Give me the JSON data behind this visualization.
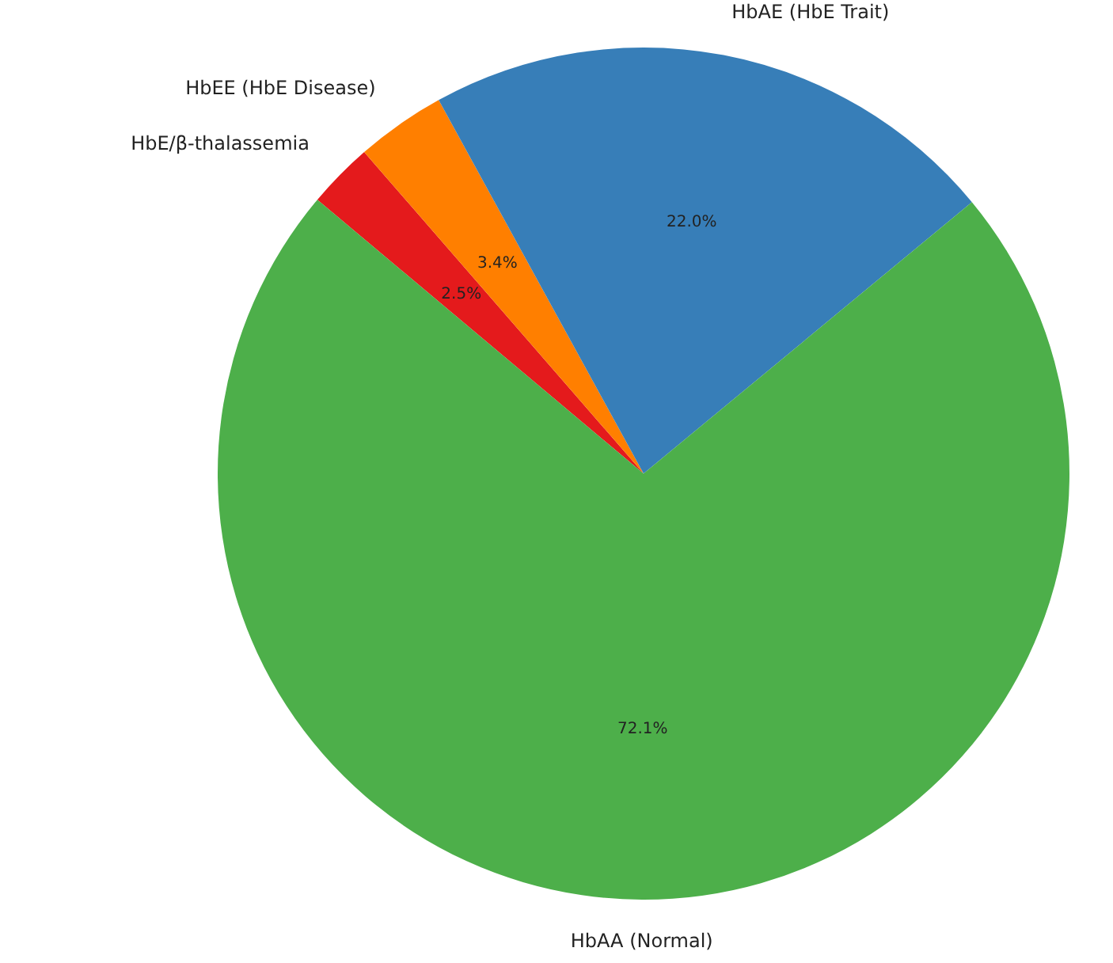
{
  "chart_data": {
    "type": "pie",
    "categories": [
      "HbAA (Normal)",
      "HbAE (HbE Trait)",
      "HbEE (HbE Disease)",
      "HbE/β-thalassemia"
    ],
    "values": [
      72.1,
      22.0,
      3.4,
      2.5
    ],
    "colors": [
      "#4daf4a",
      "#377eb8",
      "#ff7f00",
      "#e41a1c"
    ],
    "value_labels": [
      "72.1%",
      "22.0%",
      "3.4%",
      "2.5%"
    ],
    "legend": false
  }
}
